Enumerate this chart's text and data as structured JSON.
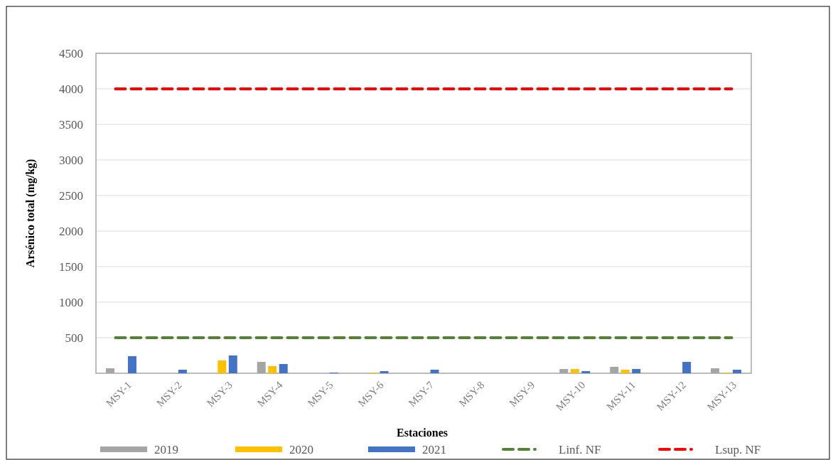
{
  "chart_data": {
    "type": "bar",
    "xlabel": "Estaciones",
    "ylabel": "Arsénico total (mg/kg)",
    "categories": [
      "MSY-1",
      "MSY-2",
      "MSY-3",
      "MSY-4",
      "MSY-5",
      "MSY-6",
      "MSY-7",
      "MSY-8",
      "MSY-9",
      "MSY-10",
      "MSY-11",
      "MSY-12",
      "MSY-13"
    ],
    "series": [
      {
        "name": "2019",
        "color": "#a5a5a5",
        "values": [
          70,
          null,
          null,
          160,
          null,
          null,
          null,
          null,
          null,
          60,
          90,
          null,
          70
        ]
      },
      {
        "name": "2020",
        "color": "#ffc000",
        "values": [
          null,
          null,
          180,
          100,
          null,
          10,
          null,
          null,
          null,
          60,
          50,
          null,
          10
        ]
      },
      {
        "name": "2021",
        "color": "#4472c4",
        "values": [
          240,
          50,
          250,
          130,
          10,
          30,
          50,
          null,
          null,
          30,
          60,
          160,
          50
        ]
      }
    ],
    "ref_lines": [
      {
        "axis": "y",
        "value": 500,
        "label": "Linf. NF",
        "color": "#548235",
        "line_style": "dashed"
      },
      {
        "axis": "y",
        "value": 4000,
        "label": "Lsup. NF",
        "color": "#ff0000",
        "line_style": "dashed"
      }
    ],
    "ylim": [
      0,
      4500
    ],
    "yticks": [
      500,
      1000,
      1500,
      2000,
      2500,
      3000,
      3500,
      4000,
      4500
    ],
    "grid": "y",
    "legend": "bottom"
  }
}
